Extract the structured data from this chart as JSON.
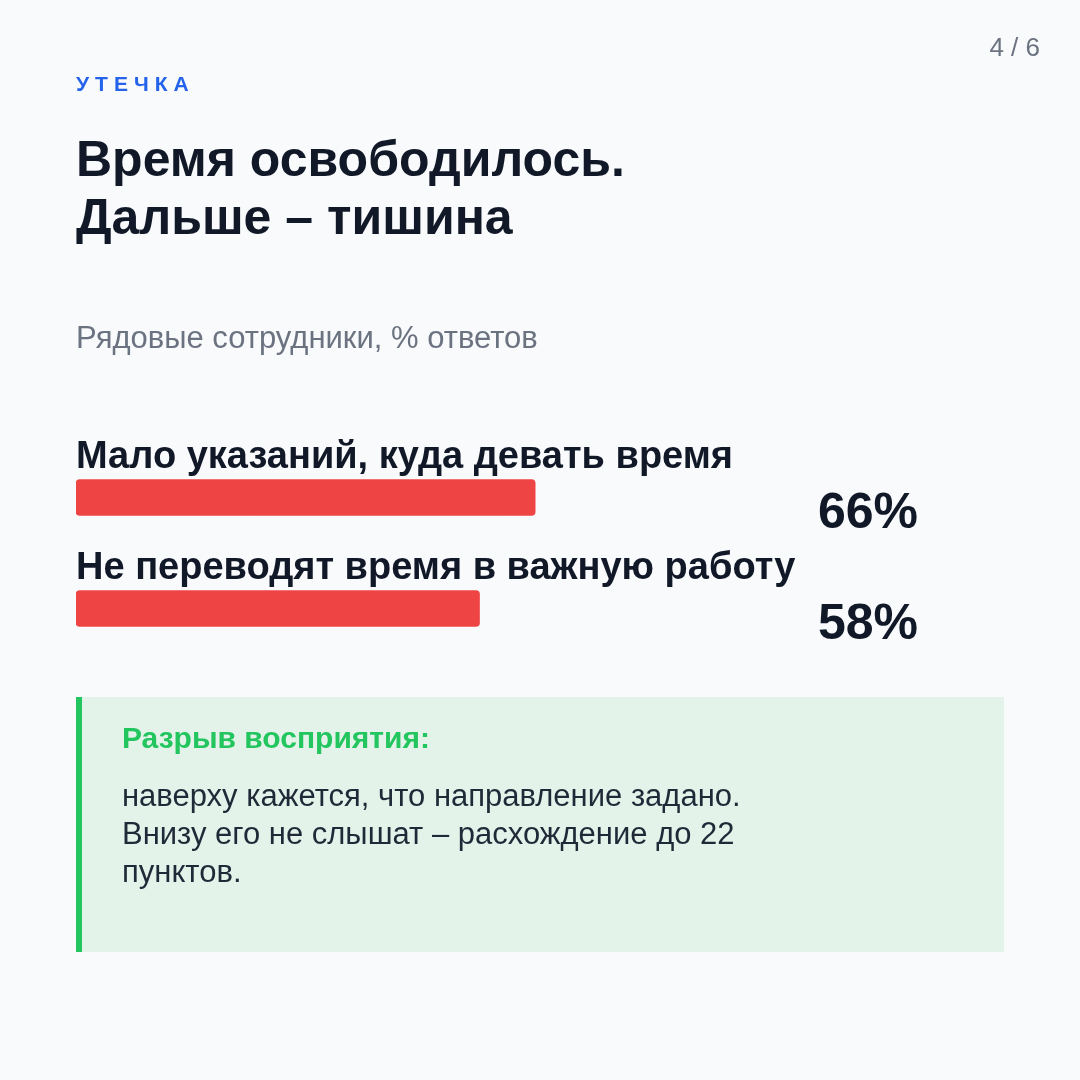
{
  "chart_data": {
    "type": "bar",
    "orientation": "horizontal",
    "title": "Время освободилось.\nДальше – тишина",
    "subtitle": "Рядовые сотрудники, % ответов",
    "categories": [
      "Мало указаний, куда девать время",
      "Не переводят время в важную работу"
    ],
    "values": [
      66,
      58
    ],
    "value_labels": [
      "66%",
      "58%"
    ],
    "color": "#ef4444",
    "annotations": [
      "УТЕЧКА",
      "4 / 6",
      "Разрыв восприятия:",
      "наверху кажется, что направление задано.\nВнизу его не слышат – расхождение до 22 пунктов."
    ]
  }
}
